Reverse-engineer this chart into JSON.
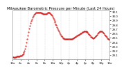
{
  "title": "Milwaukee Barometric Pressure per Minute (Last 24 Hours)",
  "bg_color": "#ffffff",
  "plot_bg_color": "#ffffff",
  "line_color": "#cc0000",
  "grid_color": "#bbbbbb",
  "text_color": "#000000",
  "border_color": "#999999",
  "ylim": [
    29.01,
    30.12
  ],
  "yticks": [
    29.1,
    29.2,
    29.3,
    29.4,
    29.5,
    29.6,
    29.7,
    29.8,
    29.9,
    30.0,
    30.1
  ],
  "ytick_labels": [
    "29.1",
    "29.2",
    "29.3",
    "29.4",
    "29.5",
    "29.6",
    "29.7",
    "29.8",
    "29.9",
    "30.0",
    "30.1"
  ],
  "pressure_values": [
    29.05,
    29.05,
    29.05,
    29.04,
    29.05,
    29.05,
    29.06,
    29.06,
    29.07,
    29.07,
    29.07,
    29.08,
    29.08,
    29.09,
    29.1,
    29.11,
    29.13,
    29.16,
    29.2,
    29.25,
    29.31,
    29.38,
    29.46,
    29.54,
    29.62,
    29.7,
    29.77,
    29.83,
    29.88,
    29.92,
    29.96,
    29.99,
    30.02,
    30.04,
    30.06,
    30.07,
    30.08,
    30.08,
    30.08,
    30.08,
    30.07,
    30.07,
    30.07,
    30.06,
    30.06,
    30.05,
    30.05,
    30.04,
    30.04,
    30.04,
    30.05,
    30.06,
    30.07,
    30.07,
    30.07,
    30.06,
    30.05,
    30.03,
    30.01,
    29.98,
    29.95,
    29.92,
    29.88,
    29.85,
    29.81,
    29.78,
    29.74,
    29.71,
    29.67,
    29.64,
    29.61,
    29.58,
    29.55,
    29.53,
    29.51,
    29.49,
    29.48,
    29.47,
    29.47,
    29.47,
    29.47,
    29.47,
    29.47,
    29.47,
    29.47,
    29.47,
    29.47,
    29.47,
    29.47,
    29.48,
    29.49,
    29.5,
    29.51,
    29.52,
    29.53,
    29.54,
    29.55,
    29.56,
    29.57,
    29.58,
    29.59,
    29.6,
    29.61,
    29.62,
    29.63,
    29.64,
    29.65,
    29.65,
    29.65,
    29.64,
    29.63,
    29.62,
    29.6,
    29.58,
    29.56,
    29.54,
    29.52,
    29.51,
    29.5,
    29.49,
    29.49,
    29.5,
    29.51,
    29.53,
    29.55,
    29.57,
    29.59,
    29.61,
    29.63,
    29.64,
    29.65,
    29.65,
    29.64,
    29.63,
    29.61,
    29.59,
    29.57,
    29.55,
    29.53,
    29.51,
    29.49,
    29.47,
    29.46,
    29.45
  ],
  "num_vgrid_lines": 11,
  "xtick_labels": [
    "12a",
    "2a",
    "4a",
    "6a",
    "8a",
    "10a",
    "12p",
    "2p",
    "4p",
    "6p",
    "8p",
    "10p",
    "12a"
  ],
  "title_fontsize": 3.8,
  "tick_fontsize": 2.8,
  "marker_size": 0.9
}
